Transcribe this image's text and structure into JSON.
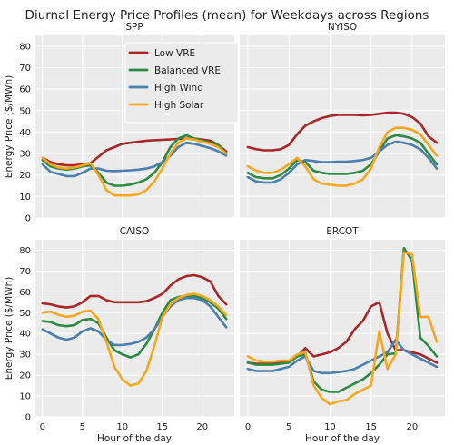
{
  "title": "Diurnal Energy Price Profiles (mean) for Weekdays across Regions",
  "colors": {
    "background": "#ffffff",
    "panel_bg": "#ebebeb",
    "grid": "#ffffff",
    "Low VRE": "#a82727",
    "Balanced VRE": "#2e8a43",
    "High Wind": "#4a7fae",
    "High Solar": "#f5a81f"
  },
  "shared_axes": {
    "xlabel": "Hour of the day",
    "ylabel": "Energy Price ($/MWh)",
    "xticks": [
      0,
      5,
      10,
      15,
      20
    ],
    "yticks": [
      0,
      10,
      20,
      30,
      40,
      50,
      60,
      70,
      80
    ],
    "xlim": [
      -1,
      24
    ],
    "ylim": [
      0,
      85
    ]
  },
  "legend": {
    "placement": "top-center of first panel",
    "entries": [
      "Low VRE",
      "Balanced VRE",
      "High Wind",
      "High Solar"
    ]
  },
  "chart_data": [
    {
      "type": "line",
      "title": "SPP",
      "x": [
        0,
        1,
        2,
        3,
        4,
        5,
        6,
        7,
        8,
        9,
        10,
        11,
        12,
        13,
        14,
        15,
        16,
        17,
        18,
        19,
        20,
        21,
        22,
        23
      ],
      "series": [
        {
          "name": "Low VRE",
          "values": [
            28,
            26,
            25,
            24.5,
            24.5,
            25,
            25.5,
            28.5,
            31.5,
            33,
            34.5,
            35,
            35.5,
            36,
            36.2,
            36.4,
            36.6,
            36.8,
            37,
            37,
            36.5,
            36,
            34,
            31
          ]
        },
        {
          "name": "Balanced VRE",
          "values": [
            27,
            24,
            23,
            22.5,
            23,
            24,
            24.5,
            21,
            16.5,
            15,
            15,
            15.5,
            16.5,
            18,
            21,
            26,
            33,
            37,
            38.5,
            37,
            36,
            35,
            34,
            30
          ]
        },
        {
          "name": "High Wind",
          "values": [
            25,
            21.5,
            20.5,
            19.5,
            19.5,
            21,
            23,
            23,
            22,
            21.8,
            22,
            22.2,
            22.5,
            23,
            24,
            26,
            29,
            33,
            35,
            34.5,
            33.5,
            32.5,
            31,
            29
          ]
        },
        {
          "name": "High Solar",
          "values": [
            28,
            25,
            23.5,
            23,
            23.5,
            24.5,
            25.5,
            20,
            13,
            10.5,
            10.5,
            10.5,
            11,
            13,
            17,
            23,
            30,
            35,
            37,
            36.5,
            35.5,
            34.5,
            33,
            30
          ]
        }
      ]
    },
    {
      "type": "line",
      "title": "NYISO",
      "x": [
        0,
        1,
        2,
        3,
        4,
        5,
        6,
        7,
        8,
        9,
        10,
        11,
        12,
        13,
        14,
        15,
        16,
        17,
        18,
        19,
        20,
        21,
        22,
        23
      ],
      "series": [
        {
          "name": "Low VRE",
          "values": [
            33,
            32,
            31.5,
            31.5,
            32,
            34,
            39,
            43,
            45,
            46.5,
            47.5,
            48,
            48,
            48,
            47.8,
            48,
            48.5,
            49,
            49,
            48.5,
            47,
            44,
            38,
            35
          ]
        },
        {
          "name": "Balanced VRE",
          "values": [
            21,
            19,
            18.5,
            18.5,
            20,
            23,
            27,
            26,
            22,
            21,
            20.5,
            20.5,
            20.5,
            21,
            22,
            25,
            31,
            37,
            38.5,
            38,
            37,
            35,
            30,
            25
          ]
        },
        {
          "name": "High Wind",
          "values": [
            19,
            17,
            16.5,
            16.5,
            18,
            21,
            25,
            27,
            26.5,
            26,
            26,
            26.2,
            26.2,
            26.5,
            27,
            28,
            31,
            34,
            35.5,
            35,
            34,
            32,
            28,
            23
          ]
        },
        {
          "name": "High Solar",
          "values": [
            24,
            22,
            21,
            21,
            22.5,
            25,
            28,
            24,
            18,
            16,
            15.5,
            15,
            15,
            16,
            18,
            23,
            33,
            40,
            42,
            42,
            41,
            39,
            34,
            29
          ]
        }
      ]
    },
    {
      "type": "line",
      "title": "CAISO",
      "x": [
        0,
        1,
        2,
        3,
        4,
        5,
        6,
        7,
        8,
        9,
        10,
        11,
        12,
        13,
        14,
        15,
        16,
        17,
        18,
        19,
        20,
        21,
        22,
        23
      ],
      "series": [
        {
          "name": "Low VRE",
          "values": [
            54.5,
            54,
            53,
            52.5,
            53,
            55,
            58,
            58,
            56,
            55,
            55,
            55,
            55,
            55.5,
            57,
            59,
            63,
            66,
            67.5,
            68,
            67,
            65,
            58,
            54
          ]
        },
        {
          "name": "Balanced VRE",
          "values": [
            46,
            45.5,
            44,
            43.5,
            44,
            46.5,
            47,
            45,
            38,
            32,
            30,
            28.5,
            30,
            35,
            42,
            50,
            56,
            57.5,
            58,
            58,
            57,
            55,
            52,
            47
          ]
        },
        {
          "name": "High Wind",
          "values": [
            42,
            40,
            38,
            37,
            38,
            41,
            42.5,
            41,
            37,
            34.5,
            34.5,
            35,
            36,
            38,
            42,
            48,
            53,
            56,
            57,
            57,
            56,
            53,
            48,
            43
          ]
        },
        {
          "name": "High Solar",
          "values": [
            50,
            50.5,
            49,
            48,
            48.5,
            50.5,
            51,
            47,
            36,
            24,
            18,
            15,
            16,
            22,
            34,
            48,
            54,
            57,
            58.5,
            59,
            58,
            56,
            53,
            49
          ]
        }
      ]
    },
    {
      "type": "line",
      "title": "ERCOT",
      "x": [
        0,
        1,
        2,
        3,
        4,
        5,
        6,
        7,
        8,
        9,
        10,
        11,
        12,
        13,
        14,
        15,
        16,
        17,
        18,
        19,
        20,
        21,
        22,
        23
      ],
      "series": [
        {
          "name": "Low VRE",
          "values": [
            26,
            25.5,
            25.5,
            25.5,
            26,
            27,
            29,
            33,
            29,
            30,
            31,
            33,
            36,
            42,
            46,
            53,
            55,
            40,
            32,
            32,
            31,
            30,
            28,
            26
          ]
        },
        {
          "name": "Balanced VRE",
          "values": [
            26,
            25,
            25,
            25,
            25.5,
            26,
            29,
            30,
            17,
            13,
            12,
            12,
            14,
            16,
            18,
            21,
            25,
            30,
            30.5,
            81,
            75,
            38,
            34,
            29
          ]
        },
        {
          "name": "High Wind",
          "values": [
            23,
            22,
            22,
            22,
            23,
            24,
            27,
            29,
            22,
            21,
            21,
            21.5,
            22,
            23,
            25,
            27,
            29,
            31,
            37,
            32,
            30,
            28,
            26,
            24
          ]
        },
        {
          "name": "High Solar",
          "values": [
            29,
            27,
            26.5,
            26.5,
            27,
            27,
            30,
            31,
            15,
            9,
            6,
            7.5,
            8,
            11,
            13,
            15,
            41,
            23,
            30,
            79,
            78,
            48,
            48,
            36
          ]
        }
      ]
    }
  ]
}
